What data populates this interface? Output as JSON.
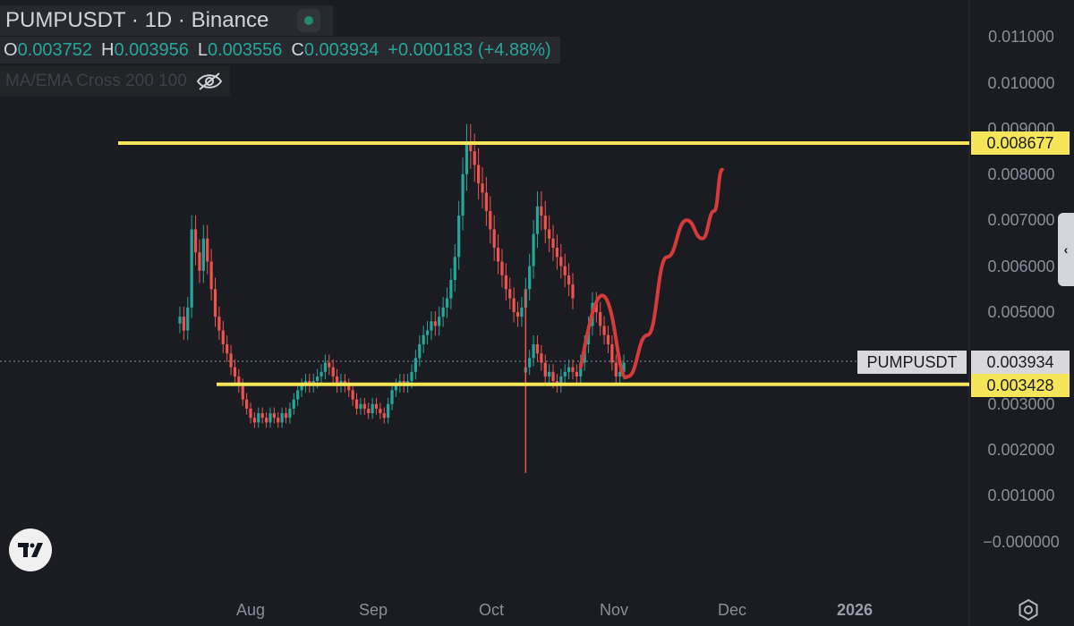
{
  "header": {
    "title": "PUMPUSDT · 1D · Binance",
    "ohlc": [
      {
        "key": "O",
        "value": "0.003752"
      },
      {
        "key": "H",
        "value": "0.003956"
      },
      {
        "key": "L",
        "value": "0.003556"
      },
      {
        "key": "C",
        "value": "0.003934"
      }
    ],
    "change": "+0.000183 (+4.88%)",
    "indicator": "MA/EMA Cross 200 100"
  },
  "price_axis": {
    "labels": [
      "0.011000",
      "0.010000",
      "0.009000",
      "0.008000",
      "0.007000",
      "0.006000",
      "0.005000",
      "0.003000",
      "0.002000",
      "0.001000",
      "−0.000000"
    ]
  },
  "time_axis": {
    "labels": [
      "Aug",
      "Sep",
      "Oct",
      "Nov",
      "Dec",
      "2026"
    ]
  },
  "markers": {
    "resistance_label": "0.008677",
    "support_label": "0.003428",
    "last_price_label": "0.003934",
    "symbol_tag": "PUMPUSDT"
  },
  "colors": {
    "up": "#26a69a",
    "down": "#ef5350",
    "levels": "#f5e559",
    "projection": "#d63a3a",
    "background": "#1b1c21"
  },
  "chart_data": {
    "type": "candlestick",
    "title": "PUMPUSDT · 1D · Binance",
    "ylim": [
      -0.0005,
      0.0115
    ],
    "grid": false,
    "horizontal_levels": [
      0.008677,
      0.003428
    ],
    "last_price": 0.003934,
    "segments": [
      {
        "start": "2025-07-14",
        "closes": [
          0.0049,
          0.0046,
          0.0051,
          0.0068,
          0.0063,
          0.0059,
          0.0066,
          0.0061,
          0.0055,
          0.0049,
          0.0046,
          0.0043,
          0.0041,
          0.0038,
          0.0036,
          0.0034,
          0.0031,
          0.0029,
          0.0027,
          0.0026,
          0.0028,
          0.0027,
          0.0026,
          0.0028,
          0.0027,
          0.0026,
          0.0028,
          0.0027,
          0.0029,
          0.0031,
          0.0033,
          0.0034,
          0.0035,
          0.0034,
          0.0035,
          0.0036,
          0.0037,
          0.0039,
          0.0038,
          0.0036,
          0.0034,
          0.0035,
          0.0034,
          0.0033,
          0.0031,
          0.0029,
          0.003,
          0.0029,
          0.0028,
          0.003,
          0.0029,
          0.0028,
          0.0027,
          0.003,
          0.0033,
          0.0034,
          0.0035,
          0.0034,
          0.0035,
          0.0037,
          0.004,
          0.0043,
          0.0045,
          0.0046,
          0.0048,
          0.0047,
          0.0049,
          0.0051,
          0.0053,
          0.0057,
          0.0062,
          0.0071,
          0.008,
          0.0087,
          0.0085,
          0.0082,
          0.0078,
          0.0076,
          0.0072,
          0.0068,
          0.0064,
          0.0061,
          0.0058,
          0.0055,
          0.0053,
          0.005,
          0.0049,
          0.0051,
          0.0055,
          0.006,
          0.0067,
          0.0073,
          0.0071,
          0.0068,
          0.0066,
          0.0064,
          0.0062,
          0.006,
          0.0058,
          0.0056,
          0.0053
        ]
      },
      {
        "start": "2025-10-10",
        "closes": [
          0.0038,
          0.004,
          0.0043,
          0.0041,
          0.0039,
          0.0036,
          0.0037,
          0.0035,
          0.0034,
          0.0036,
          0.0037,
          0.0038,
          0.0037,
          0.0036,
          0.0039,
          0.0043,
          0.0047,
          0.0052,
          0.005,
          0.0047,
          0.0045,
          0.0043,
          0.0039,
          0.0036,
          0.0037,
          0.0039
        ]
      }
    ],
    "projection": [
      {
        "date": "2025-11-05",
        "value": 0.0036
      },
      {
        "date": "2025-11-10",
        "value": 0.0045
      },
      {
        "date": "2025-11-15",
        "value": 0.0062
      },
      {
        "date": "2025-11-20",
        "value": 0.007
      },
      {
        "date": "2025-11-24",
        "value": 0.0066
      },
      {
        "date": "2025-11-27",
        "value": 0.0072
      },
      {
        "date": "2025-11-29",
        "value": 0.0081
      }
    ]
  }
}
